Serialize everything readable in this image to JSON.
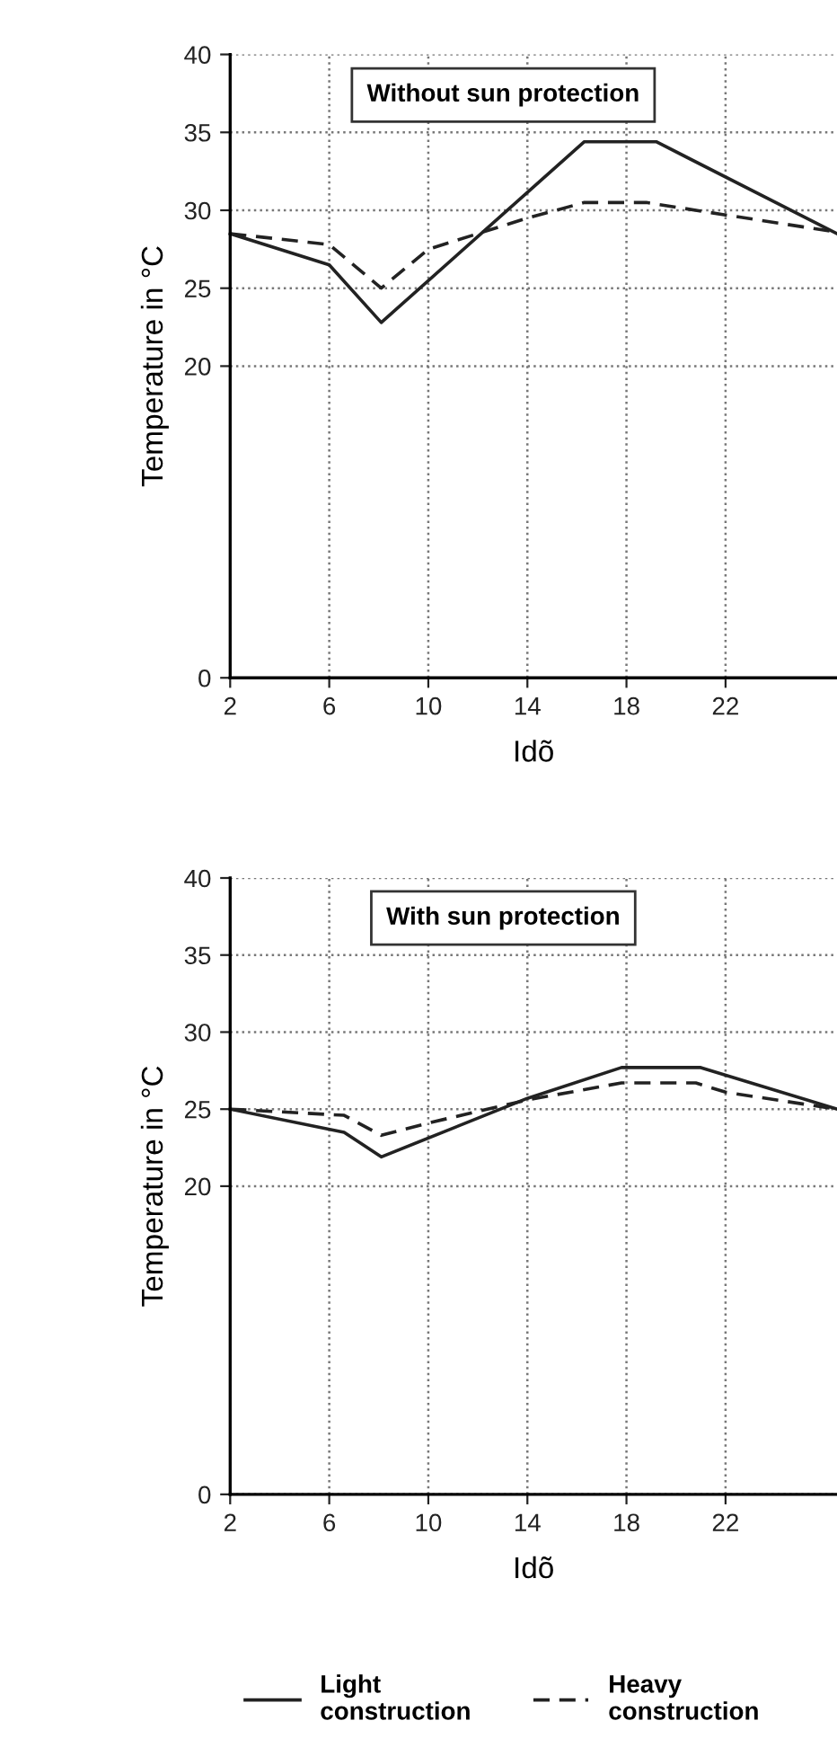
{
  "chart_data": [
    {
      "type": "line",
      "title": "Without sun protection",
      "xlabel": "Idõ",
      "ylabel": "Temperature in °C",
      "xlim": [
        2,
        26.5
      ],
      "xticks": [
        2,
        6,
        10,
        14,
        18,
        22
      ],
      "ylim": [
        0,
        40
      ],
      "yticks": [
        0,
        20,
        25,
        30,
        35,
        40
      ],
      "grid": true,
      "legend": "bottom",
      "series": [
        {
          "name": "Light\nconstruction",
          "color": "#222222",
          "line_style": "solid",
          "x": [
            2,
            6,
            8.1,
            16.3,
            19.2,
            26.5
          ],
          "values": [
            28.5,
            26.5,
            22.8,
            34.4,
            34.4,
            28.5
          ]
        },
        {
          "name": "Heavy\nconstruction",
          "color": "#222222",
          "line_style": "dashed",
          "x": [
            2,
            6,
            8.1,
            10,
            14,
            16.3,
            18.8,
            22,
            26.5
          ],
          "values": [
            28.5,
            27.8,
            25.0,
            27.5,
            29.5,
            30.5,
            30.5,
            29.7,
            28.6
          ]
        }
      ]
    },
    {
      "type": "line",
      "title": "With sun protection",
      "xlabel": "Idõ",
      "ylabel": "Temperature in °C",
      "xlim": [
        2,
        26.5
      ],
      "xticks": [
        2,
        6,
        10,
        14,
        18,
        22
      ],
      "ylim": [
        0,
        40
      ],
      "yticks": [
        0,
        20,
        25,
        30,
        35,
        40
      ],
      "grid": true,
      "series": [
        {
          "color": "#222222",
          "line_style": "solid",
          "x": [
            2,
            6.6,
            8.1,
            14,
            17.8,
            21.0,
            26.5
          ],
          "values": [
            25.0,
            23.5,
            21.9,
            25.7,
            27.7,
            27.7,
            25.0
          ]
        },
        {
          "color": "#222222",
          "line_style": "dashed",
          "x": [
            2,
            6.6,
            8.1,
            10,
            14,
            17.8,
            20.8,
            22,
            26.5
          ],
          "values": [
            25.0,
            24.6,
            23.3,
            24.1,
            25.6,
            26.7,
            26.7,
            26.1,
            25.0
          ]
        }
      ]
    }
  ]
}
